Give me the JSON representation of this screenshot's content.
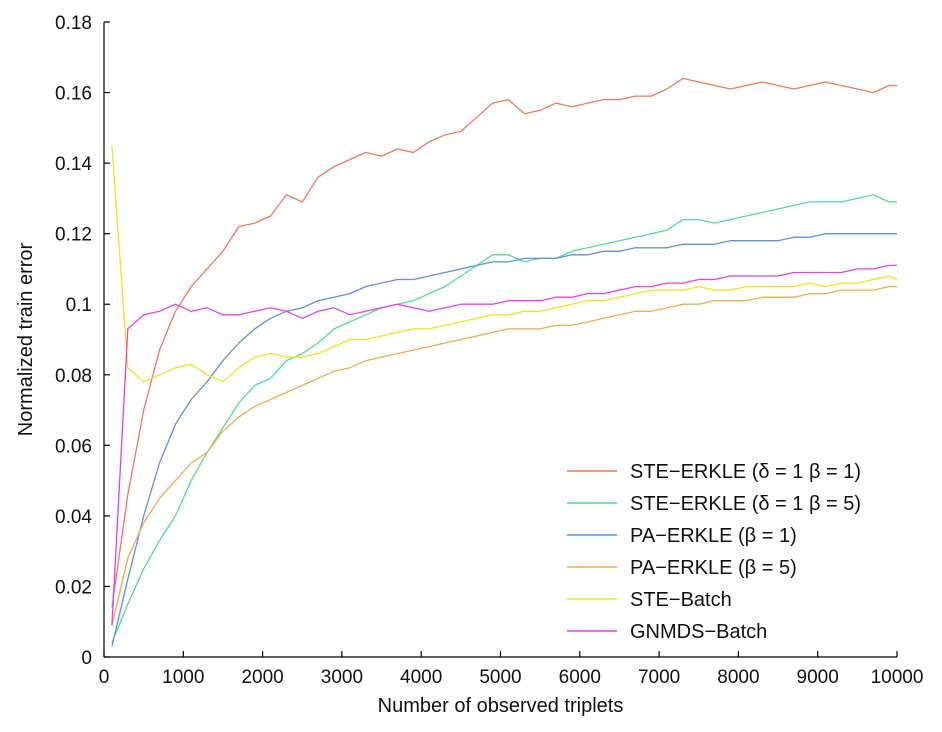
{
  "chart_data": {
    "type": "line",
    "title": "",
    "xlabel": "Number of observed triplets",
    "ylabel": "Normalized train error",
    "xlim": [
      0,
      10000
    ],
    "ylim": [
      0,
      0.18
    ],
    "xticks": [
      0,
      1000,
      2000,
      3000,
      4000,
      5000,
      6000,
      7000,
      8000,
      9000,
      10000
    ],
    "xtick_labels": [
      "0",
      "1000",
      "2000",
      "3000",
      "4000",
      "5000",
      "6000",
      "7000",
      "8000",
      "9000",
      "10000"
    ],
    "yticks": [
      0,
      0.02,
      0.04,
      0.06,
      0.08,
      0.1,
      0.12,
      0.14,
      0.16,
      0.18
    ],
    "ytick_labels": [
      "0",
      "0.02",
      "0.04",
      "0.06",
      "0.08",
      "0.1",
      "0.12",
      "0.14",
      "0.16",
      "0.18"
    ],
    "grid": false,
    "legend_position": "bottom-right",
    "x": [
      100,
      300,
      500,
      700,
      900,
      1100,
      1300,
      1500,
      1700,
      1900,
      2100,
      2300,
      2500,
      2700,
      2900,
      3100,
      3300,
      3500,
      3700,
      3900,
      4100,
      4300,
      4500,
      4700,
      4900,
      5100,
      5300,
      5500,
      5700,
      5900,
      6100,
      6300,
      6500,
      6700,
      6900,
      7100,
      7300,
      7500,
      7700,
      7900,
      8100,
      8300,
      8500,
      8700,
      8900,
      9100,
      9300,
      9500,
      9700,
      9900,
      10000
    ],
    "series": [
      {
        "name": "STE−ERKLE (δ = 1 β = 1)",
        "color": "#f5765a",
        "values": [
          0.014,
          0.046,
          0.07,
          0.087,
          0.098,
          0.105,
          0.11,
          0.115,
          0.122,
          0.123,
          0.125,
          0.131,
          0.129,
          0.136,
          0.139,
          0.141,
          0.143,
          0.142,
          0.144,
          0.143,
          0.146,
          0.148,
          0.149,
          0.153,
          0.157,
          0.158,
          0.154,
          0.155,
          0.157,
          0.156,
          0.157,
          0.158,
          0.158,
          0.159,
          0.159,
          0.161,
          0.164,
          0.163,
          0.162,
          0.161,
          0.162,
          0.163,
          0.162,
          0.161,
          0.162,
          0.163,
          0.162,
          0.161,
          0.16,
          0.162,
          0.162
        ]
      },
      {
        "name": "STE−ERKLE (δ = 1 β = 5)",
        "color": "#4fdc96",
        "values": [
          0.004,
          0.015,
          0.025,
          0.033,
          0.04,
          0.05,
          0.058,
          0.065,
          0.072,
          0.077,
          0.079,
          0.084,
          0.086,
          0.089,
          0.093,
          0.095,
          0.097,
          0.099,
          0.1,
          0.101,
          0.103,
          0.105,
          0.108,
          0.111,
          0.114,
          0.114,
          0.112,
          0.113,
          0.113,
          0.115,
          0.116,
          0.117,
          0.118,
          0.119,
          0.12,
          0.121,
          0.124,
          0.124,
          0.123,
          0.124,
          0.125,
          0.126,
          0.127,
          0.128,
          0.129,
          0.129,
          0.129,
          0.13,
          0.131,
          0.129,
          0.129
        ]
      },
      {
        "name": "PA−ERKLE (β = 1)",
        "color": "#5b8ef0",
        "values": [
          0.003,
          0.022,
          0.04,
          0.055,
          0.066,
          0.073,
          0.078,
          0.084,
          0.089,
          0.093,
          0.096,
          0.098,
          0.099,
          0.101,
          0.102,
          0.103,
          0.105,
          0.106,
          0.107,
          0.107,
          0.108,
          0.109,
          0.11,
          0.111,
          0.112,
          0.112,
          0.113,
          0.113,
          0.113,
          0.114,
          0.114,
          0.115,
          0.115,
          0.116,
          0.116,
          0.116,
          0.117,
          0.117,
          0.117,
          0.118,
          0.118,
          0.118,
          0.118,
          0.119,
          0.119,
          0.12,
          0.12,
          0.12,
          0.12,
          0.12,
          0.12
        ]
      },
      {
        "name": "PA−ERKLE (β = 5)",
        "color": "#f7a84e",
        "values": [
          0.009,
          0.028,
          0.038,
          0.045,
          0.05,
          0.055,
          0.058,
          0.064,
          0.068,
          0.071,
          0.073,
          0.075,
          0.077,
          0.079,
          0.081,
          0.082,
          0.084,
          0.085,
          0.086,
          0.087,
          0.088,
          0.089,
          0.09,
          0.091,
          0.092,
          0.093,
          0.093,
          0.093,
          0.094,
          0.094,
          0.095,
          0.096,
          0.097,
          0.098,
          0.098,
          0.099,
          0.1,
          0.1,
          0.101,
          0.101,
          0.101,
          0.102,
          0.102,
          0.102,
          0.103,
          0.103,
          0.104,
          0.104,
          0.104,
          0.105,
          0.105
        ]
      },
      {
        "name": "STE−Batch",
        "color": "#f2e21a",
        "values": [
          0.145,
          0.082,
          0.078,
          0.08,
          0.082,
          0.083,
          0.08,
          0.078,
          0.082,
          0.085,
          0.086,
          0.085,
          0.085,
          0.086,
          0.088,
          0.09,
          0.09,
          0.091,
          0.092,
          0.093,
          0.093,
          0.094,
          0.095,
          0.096,
          0.097,
          0.097,
          0.098,
          0.098,
          0.099,
          0.1,
          0.101,
          0.101,
          0.102,
          0.103,
          0.104,
          0.104,
          0.104,
          0.105,
          0.104,
          0.104,
          0.105,
          0.105,
          0.105,
          0.105,
          0.106,
          0.105,
          0.106,
          0.106,
          0.107,
          0.108,
          0.107
        ]
      },
      {
        "name": "GNMDS−Batch",
        "color": "#ec3ee0",
        "values": [
          0.009,
          0.093,
          0.097,
          0.098,
          0.1,
          0.098,
          0.099,
          0.097,
          0.097,
          0.098,
          0.099,
          0.098,
          0.096,
          0.098,
          0.099,
          0.097,
          0.098,
          0.099,
          0.1,
          0.099,
          0.098,
          0.099,
          0.1,
          0.1,
          0.1,
          0.101,
          0.101,
          0.101,
          0.102,
          0.102,
          0.103,
          0.103,
          0.104,
          0.105,
          0.105,
          0.106,
          0.106,
          0.107,
          0.107,
          0.108,
          0.108,
          0.108,
          0.108,
          0.109,
          0.109,
          0.109,
          0.109,
          0.11,
          0.11,
          0.111,
          0.111
        ]
      }
    ]
  }
}
